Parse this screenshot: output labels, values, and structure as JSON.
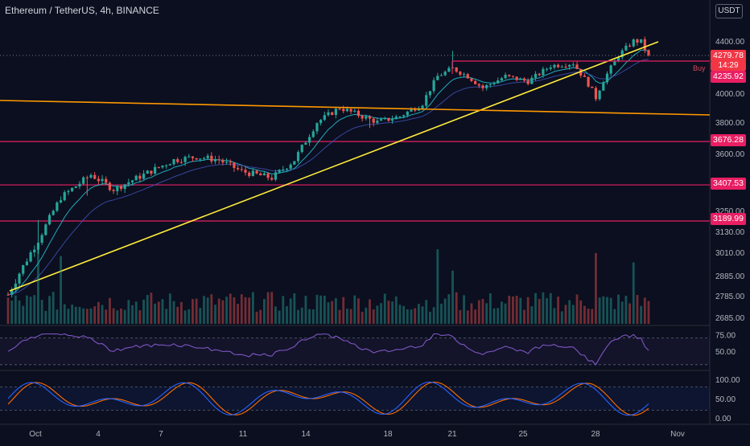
{
  "header": {
    "symbol_text": "Ethereum / TetherUS, 4h, BINANCE",
    "currency": "USDT"
  },
  "colors": {
    "background": "#0b0f1f",
    "bull": "#26a69a",
    "bear": "#ef5350",
    "level_line": "#e91e63",
    "trendline": "#ffeb3b",
    "resistance_line": "#ff9800",
    "ema_fast": "#26c6da",
    "ema_slow": "#3f51b5",
    "rsi": "#7e57c2",
    "stoch_k": "#2962ff",
    "stoch_d": "#ff6d00",
    "last_price": "#f23645"
  },
  "labels": {
    "last_price": "4279.78",
    "countdown": "14:29",
    "entry_price": "4235.92",
    "buy_text": "Buy"
  },
  "chart_data": {
    "type": "candlestick",
    "symbol": "ETH/USDT",
    "timeframe": "4h",
    "exchange": "BINANCE",
    "x_tick_labels": [
      "Oct",
      "4",
      "7",
      "11",
      "14",
      "18",
      "21",
      "25",
      "28",
      "Nov"
    ],
    "price_axis_ticks": [
      "4400.00",
      "4000.00",
      "3800.00",
      "3600.00",
      "3250.00",
      "3130.00",
      "3010.00",
      "2885.00",
      "2785.00",
      "2685.00"
    ],
    "price_levels": [
      {
        "label": "3676.28",
        "value": 3676.28
      },
      {
        "label": "3407.53",
        "value": 3407.53
      },
      {
        "label": "3189.99",
        "value": 3189.99
      }
    ],
    "last_price": 4279.78,
    "anchors": [
      {
        "t": 0,
        "v": 2790
      },
      {
        "t": 8,
        "v": 3080
      },
      {
        "t": 14,
        "v": 3330
      },
      {
        "t": 22,
        "v": 3470
      },
      {
        "t": 28,
        "v": 3380
      },
      {
        "t": 36,
        "v": 3470
      },
      {
        "t": 44,
        "v": 3560
      },
      {
        "t": 50,
        "v": 3580
      },
      {
        "t": 56,
        "v": 3560
      },
      {
        "t": 62,
        "v": 3490
      },
      {
        "t": 70,
        "v": 3450
      },
      {
        "t": 76,
        "v": 3560
      },
      {
        "t": 82,
        "v": 3800
      },
      {
        "t": 88,
        "v": 3900
      },
      {
        "t": 92,
        "v": 3860
      },
      {
        "t": 98,
        "v": 3800
      },
      {
        "t": 104,
        "v": 3840
      },
      {
        "t": 110,
        "v": 3930
      },
      {
        "t": 114,
        "v": 4130
      },
      {
        "t": 118,
        "v": 4190
      },
      {
        "t": 122,
        "v": 4130
      },
      {
        "t": 126,
        "v": 4040
      },
      {
        "t": 132,
        "v": 4130
      },
      {
        "t": 138,
        "v": 4090
      },
      {
        "t": 144,
        "v": 4210
      },
      {
        "t": 150,
        "v": 4230
      },
      {
        "t": 154,
        "v": 4070
      },
      {
        "t": 156,
        "v": 3970
      },
      {
        "t": 158,
        "v": 4100
      },
      {
        "t": 162,
        "v": 4290
      },
      {
        "t": 166,
        "v": 4400
      },
      {
        "t": 168,
        "v": 4395
      },
      {
        "t": 170,
        "v": 4280
      }
    ],
    "candle_count": 171,
    "indicators": {
      "moving_averages": [
        "ema_fast",
        "ema_slow"
      ],
      "volume": true,
      "rsi": {
        "axis_ticks": [
          "75.00",
          "50.00"
        ]
      },
      "stochastic_rsi": {
        "axis_ticks": [
          "100.00",
          "50.00",
          "0.00"
        ]
      }
    },
    "drawings": [
      "rising trendline",
      "flat resistance line",
      "entry line with Buy marker"
    ]
  }
}
